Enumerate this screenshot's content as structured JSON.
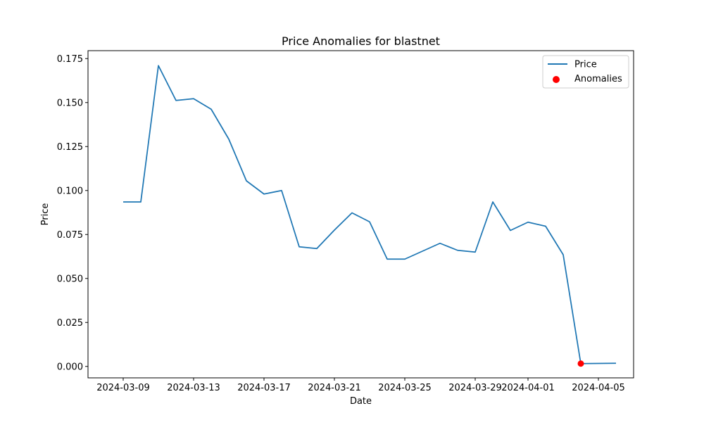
{
  "chart_data": {
    "type": "line",
    "title": "Price Anomalies for blastnet",
    "xlabel": "Date",
    "ylabel": "Price",
    "ylim": [
      -0.0065,
      0.1795
    ],
    "y_ticks": [
      0.0,
      0.025,
      0.05,
      0.075,
      0.1,
      0.125,
      0.15,
      0.175
    ],
    "y_tick_labels": [
      "0.000",
      "0.025",
      "0.050",
      "0.075",
      "0.100",
      "0.125",
      "0.150",
      "0.175"
    ],
    "x_ticks": [
      "2024-03-09",
      "2024-03-13",
      "2024-03-17",
      "2024-03-21",
      "2024-03-25",
      "2024-03-29",
      "2024-04-01",
      "2024-04-05"
    ],
    "x_range": [
      "2024-03-07",
      "2024-04-07"
    ],
    "grid": false,
    "legend_position": "upper right",
    "colors": {
      "line": "#1f77b4",
      "anomaly": "#ff0000"
    },
    "series": [
      {
        "name": "Price",
        "type": "line",
        "points": [
          {
            "x": "2024-03-09",
            "y": 0.0935
          },
          {
            "x": "2024-03-10",
            "y": 0.0935
          },
          {
            "x": "2024-03-11",
            "y": 0.171
          },
          {
            "x": "2024-03-12",
            "y": 0.1512
          },
          {
            "x": "2024-03-13",
            "y": 0.1522
          },
          {
            "x": "2024-03-14",
            "y": 0.1462
          },
          {
            "x": "2024-03-15",
            "y": 0.1292
          },
          {
            "x": "2024-03-16",
            "y": 0.1055
          },
          {
            "x": "2024-03-17",
            "y": 0.098
          },
          {
            "x": "2024-03-18",
            "y": 0.1
          },
          {
            "x": "2024-03-19",
            "y": 0.068
          },
          {
            "x": "2024-03-20",
            "y": 0.067
          },
          {
            "x": "2024-03-21",
            "y": 0.0775
          },
          {
            "x": "2024-03-22",
            "y": 0.0873
          },
          {
            "x": "2024-03-23",
            "y": 0.0822
          },
          {
            "x": "2024-03-24",
            "y": 0.061
          },
          {
            "x": "2024-03-25",
            "y": 0.061
          },
          {
            "x": "2024-03-26",
            "y": 0.0655
          },
          {
            "x": "2024-03-27",
            "y": 0.07
          },
          {
            "x": "2024-03-28",
            "y": 0.066
          },
          {
            "x": "2024-03-29",
            "y": 0.065
          },
          {
            "x": "2024-03-30",
            "y": 0.0935
          },
          {
            "x": "2024-03-31",
            "y": 0.0773
          },
          {
            "x": "2024-04-01",
            "y": 0.082
          },
          {
            "x": "2024-04-02",
            "y": 0.0797
          },
          {
            "x": "2024-04-03",
            "y": 0.0635
          },
          {
            "x": "2024-04-04",
            "y": 0.0016
          },
          {
            "x": "2024-04-05",
            "y": 0.0017
          },
          {
            "x": "2024-04-06",
            "y": 0.0018
          }
        ]
      },
      {
        "name": "Anomalies",
        "type": "scatter",
        "points": [
          {
            "x": "2024-04-04",
            "y": 0.0016
          }
        ]
      }
    ]
  }
}
